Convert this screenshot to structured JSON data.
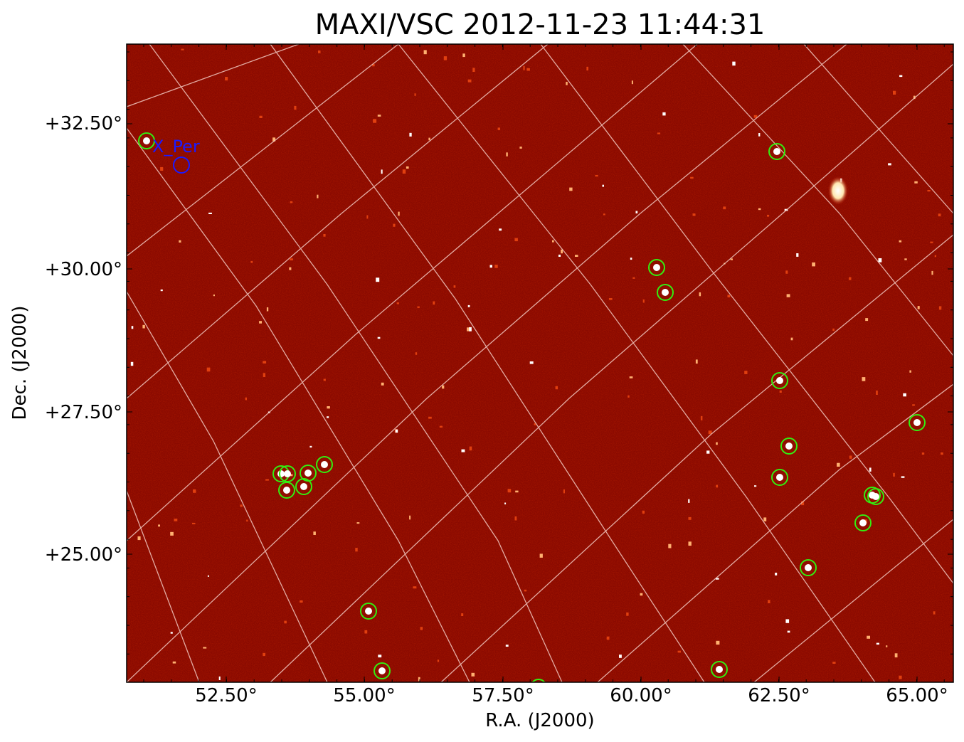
{
  "title": "MAXI/VSC 2012-11-23 11:44:31",
  "xlabel": "R.A. (J2000)",
  "ylabel": "Dec. (J2000)",
  "xticks": [
    "52.50°",
    "55.00°",
    "57.50°",
    "60.00°",
    "62.50°",
    "65.00°"
  ],
  "yticks": [
    "+32.50°",
    "+30.00°",
    "+27.50°",
    "+25.00°"
  ],
  "named_source": "X_Per",
  "colors": {
    "background_map": "#8c0a00",
    "grid": "#f2c8c0",
    "marker": "#33ee11",
    "label": "#1a1aff"
  }
}
